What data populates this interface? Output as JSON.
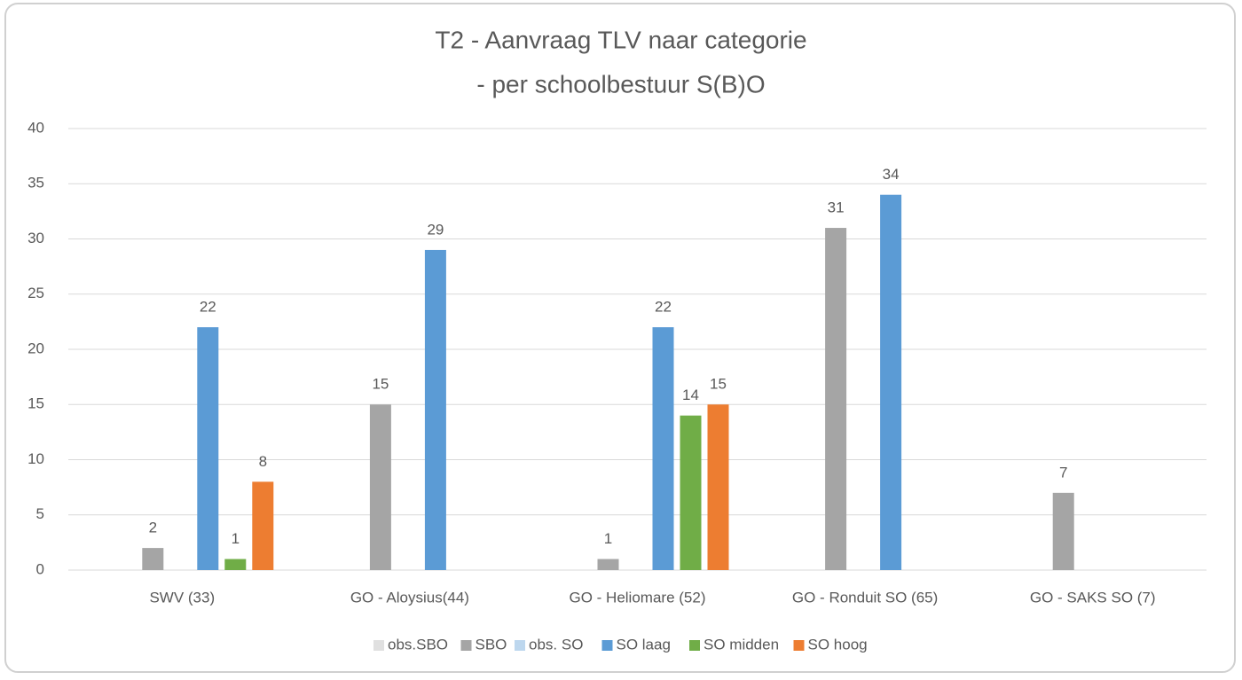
{
  "chart_data": {
    "type": "bar",
    "title": "T2 - Aanvraag TLV naar categorie",
    "subtitle": "- per schoolbestuur S(B)O",
    "categories": [
      "SWV (33)",
      "GO - Aloysius(44)",
      "GO - Heliomare (52)",
      "GO - Ronduit SO (65)",
      "GO - SAKS SO (7)"
    ],
    "series": [
      {
        "name": "obs.SBO",
        "color": "#e0e0e0",
        "values": [
          null,
          null,
          null,
          null,
          null
        ]
      },
      {
        "name": "SBO",
        "color": "#a5a5a5",
        "values": [
          2,
          15,
          1,
          31,
          7
        ]
      },
      {
        "name": "obs. SO",
        "color": "#bdd7ee",
        "values": [
          null,
          null,
          null,
          null,
          null
        ]
      },
      {
        "name": "SO laag",
        "color": "#5b9bd5",
        "values": [
          22,
          29,
          22,
          34,
          null
        ]
      },
      {
        "name": "SO midden",
        "color": "#70ad47",
        "values": [
          1,
          null,
          14,
          null,
          null
        ]
      },
      {
        "name": "SO hoog",
        "color": "#ed7d31",
        "values": [
          8,
          null,
          15,
          null,
          null
        ]
      }
    ],
    "ylim": [
      0,
      40
    ],
    "yticks": [
      0,
      5,
      10,
      15,
      20,
      25,
      30,
      35,
      40
    ],
    "grid": true,
    "legend": "bottom"
  }
}
